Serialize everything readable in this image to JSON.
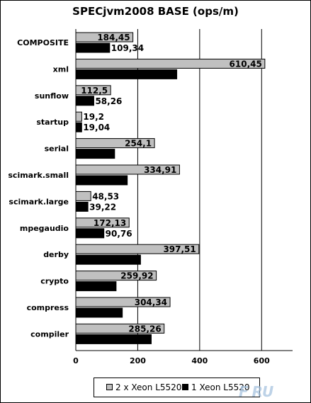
{
  "chart_data": {
    "type": "bar",
    "orientation": "horizontal",
    "title": "SPECjvm2008 BASE (ops/m)",
    "categories": [
      "COMPOSITE",
      "xml",
      "sunflow",
      "startup",
      "serial",
      "scimark.small",
      "scimark.large",
      "mpegaudio",
      "derby",
      "crypto",
      "compress",
      "compiler"
    ],
    "series": [
      {
        "name": "2 x Xeon L5520",
        "color": "#c0c0c0",
        "values": [
          184.45,
          610.45,
          112.5,
          19.2,
          254.1,
          334.91,
          48.53,
          172.13,
          397.51,
          259.92,
          304.34,
          285.26
        ],
        "labels": [
          "184,45",
          "610,45",
          "112,5",
          "19,2",
          "254,1",
          "334,91",
          "48,53",
          "172,13",
          "397,51",
          "259,92",
          "304,34",
          "285,26"
        ]
      },
      {
        "name": "1 Xeon L5520",
        "color": "#000000",
        "values": [
          109.34,
          326.11,
          58.26,
          19.04,
          125.37,
          166.26,
          39.22,
          90.76,
          209.04,
          130.12,
          150.23,
          243.6
        ],
        "labels": [
          "109,34",
          "326,11",
          "58,26",
          "19,04",
          "125,37",
          "166,26",
          "39,22",
          "90,76",
          "209,04",
          "130,12",
          "150,23",
          "243,6"
        ]
      }
    ],
    "xlim": [
      0,
      700
    ],
    "xticks": [
      0,
      200,
      400,
      600
    ],
    "grid": true,
    "legend_position": "bottom"
  },
  "watermark": "F  RU"
}
